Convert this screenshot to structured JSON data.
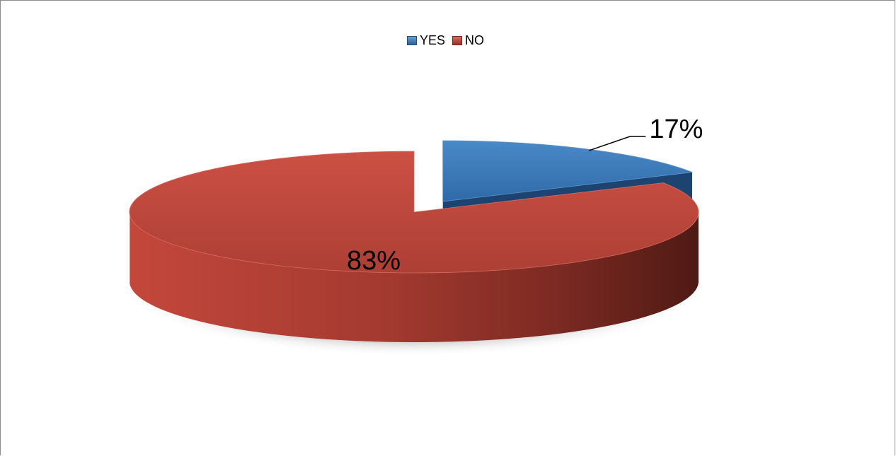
{
  "chart_data": {
    "type": "pie",
    "title": "",
    "categories": [
      "YES",
      "NO"
    ],
    "values": [
      17,
      83
    ],
    "value_labels": [
      "17%",
      "83%"
    ],
    "colors": [
      "#3b78b8",
      "#b8443a"
    ],
    "legend": {
      "position": "top",
      "entries": [
        "YES",
        "NO"
      ]
    },
    "exploded": true,
    "style": "3d"
  }
}
